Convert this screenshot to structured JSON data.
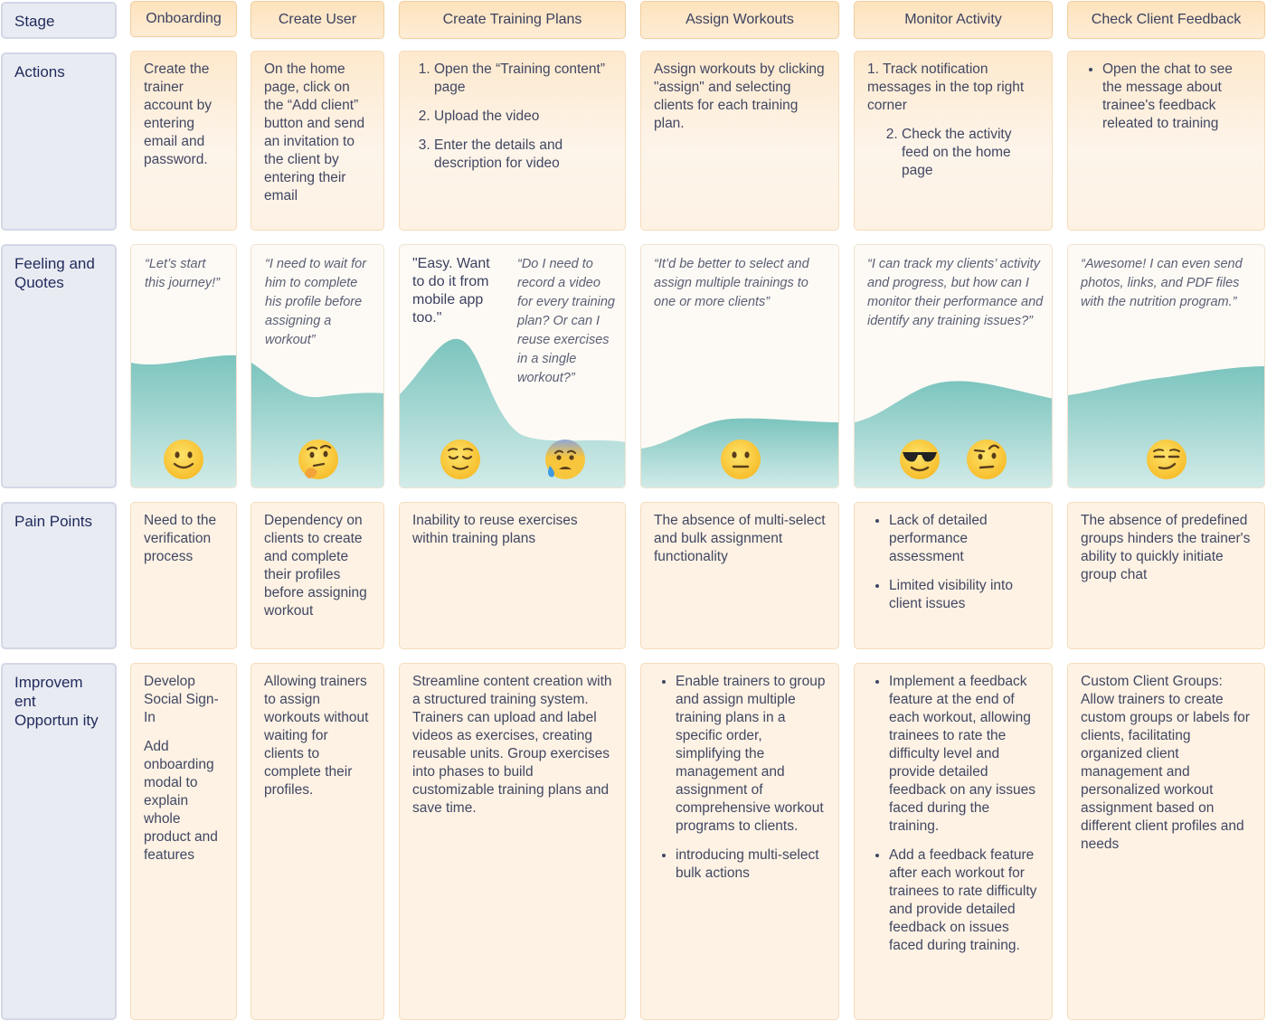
{
  "row_labels": {
    "stage": "Stage",
    "actions": "Actions",
    "feeling": "Feeling and Quotes",
    "pain": "Pain Points",
    "improvement": "Improvem ent Opportun ity"
  },
  "stages": [
    "Onboarding",
    "Create User",
    "Create Training Plans",
    "Assign Workouts",
    "Monitor Activity",
    "Check Client Feedback"
  ],
  "actions": {
    "onboarding": "Create the trainer account by entering email and password.",
    "create_user": "On the home page, click on the “Add client” button and send an invitation to the client by entering their email",
    "training_plans": [
      "Open the “Training content” page",
      "Upload the video",
      "Enter the details and description for video"
    ],
    "assign_workouts": "Assign workouts by clicking \"assign\" and selecting clients for each training plan.",
    "monitor_activity": [
      "1. Track notification messages in the top right corner",
      "Check the activity feed on the home page"
    ],
    "client_feedback": [
      "Open the chat to see the message about trainee's feedback releated to training"
    ]
  },
  "quotes": {
    "onboarding": "“Let’s start this journey!”",
    "create_user": "“I need to wait for him to complete his profile before assigning a workout”",
    "training_plans_1": "\"Easy. Want to do it from mobile app too.\"",
    "training_plans_2": "“Do I need to record a video for every training plan? Or can I reuse exercises in a single workout?”",
    "assign_workouts": "“It’d be better to select and assign multiple trainings to one or more clients”",
    "monitor_activity": "“I can track my clients’ activity and progress, but how can I monitor their performance and identify any training issues?”",
    "client_feedback": "“Awesome! I can even send photos, links, and PDF files with the nutrition program.”"
  },
  "emotions": {
    "onboarding": [
      "slightly-smiling-face-icon"
    ],
    "create_user": [
      "thinking-face-icon"
    ],
    "training_plans": [
      "relieved-face-icon",
      "anxious-face-with-sweat-icon"
    ],
    "assign_workouts": [
      "neutral-face-icon"
    ],
    "monitor_activity": [
      "sunglasses-face-icon",
      "raised-eyebrow-face-icon"
    ],
    "client_feedback": [
      "smirking-face-icon"
    ]
  },
  "pain_points": {
    "onboarding": "Need to the verification process",
    "create_user": "Dependency on clients to create and complete their profiles before assigning workout",
    "training_plans": "Inability to reuse exercises within training plans",
    "assign_workouts": "The absence of multi-select and bulk assignment functionality",
    "monitor_activity": [
      "Lack of detailed performance assessment",
      "Limited visibility into client issues"
    ],
    "client_feedback": "The absence of predefined groups hinders the trainer's ability to quickly initiate group chat"
  },
  "improvements": {
    "onboarding_1": "Develop Social Sign-In",
    "onboarding_2": "Add onboarding modal to explain whole product and features",
    "create_user": "Allowing trainers to assign workouts without waiting for clients to complete their profiles.",
    "training_plans": "Streamline content creation with a structured training system. Trainers can upload and label videos as exercises, creating reusable units. Group exercises into phases to build customizable training plans and save time.",
    "assign_workouts": [
      "Enable trainers to group and assign multiple training plans in a specific order, simplifying the management and assignment of comprehensive workout programs to clients.",
      "introducing multi-select bulk actions"
    ],
    "monitor_activity": [
      "Implement a feedback feature at the end of each workout, allowing trainees to rate the difficulty level and provide detailed feedback on any issues faced during the training.",
      "Add a feedback feature after each workout for trainees to rate difficulty and provide detailed feedback on issues faced during training."
    ],
    "client_feedback": "Custom Client Groups: Allow trainers to create custom groups or labels for clients, facilitating organized client management and personalized workout assignment based on different client profiles and needs"
  },
  "colors": {
    "wave_top": "#7cc5bf",
    "wave_bottom": "#d2ebe8",
    "emoji_yellow": "#fbc93f",
    "card_bg": "#fdf2e4",
    "header_bg": "#fde3bd",
    "rowhead_bg": "#e9ebf3"
  }
}
